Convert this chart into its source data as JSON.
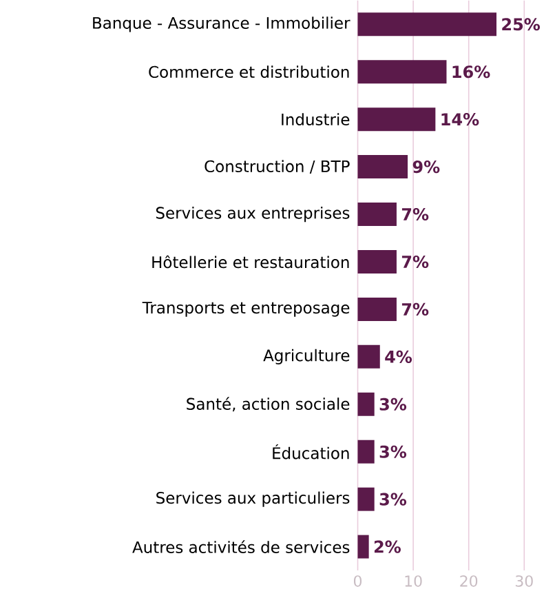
{
  "chart_data": {
    "type": "bar",
    "orientation": "horizontal",
    "categories": [
      "Banque - Assurance - Immobilier",
      "Commerce et distribution",
      "Industrie",
      "Construction / BTP",
      "Services aux entreprises",
      "Hôtellerie et restauration",
      "Transports et entreposage",
      "Agriculture",
      "Santé, action sociale",
      "Éducation",
      "Services aux particuliers",
      "Autres activités de services"
    ],
    "values": [
      25,
      16,
      14,
      9,
      7,
      7,
      7,
      4,
      3,
      3,
      3,
      2
    ],
    "value_labels": [
      "25%",
      "16%",
      "14%",
      "9%",
      "7%",
      "7%",
      "7%",
      "4%",
      "3%",
      "3%",
      "3%",
      "2%"
    ],
    "color": "#5b1a4a",
    "xlim": [
      0,
      30
    ],
    "xticks": [
      0,
      10,
      20,
      30
    ],
    "grid": "x"
  }
}
